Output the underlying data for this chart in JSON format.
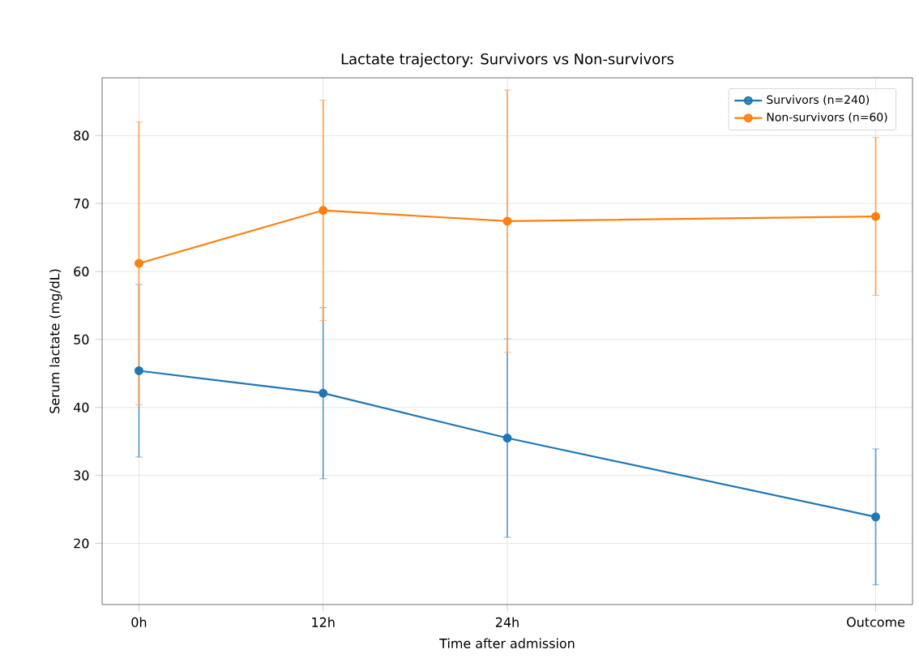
{
  "chart_data": {
    "type": "line",
    "title": "Lactate trajectory: Survivors vs Non-survivors",
    "xlabel": "Time after admission",
    "ylabel": "Serum lactate (mg/dL)",
    "x": [
      0,
      12,
      24,
      48
    ],
    "series": [
      {
        "name": "Survivors (n=240)",
        "color": "#1f77b4",
        "values": [
          45.4,
          42.1,
          35.5,
          23.9
        ],
        "errors": [
          12.7,
          12.6,
          14.6,
          10.0
        ]
      },
      {
        "name": "Non-survivors (n=60)",
        "color": "#ff7f0e",
        "values": [
          61.2,
          69.0,
          67.4,
          68.1
        ],
        "errors": [
          20.8,
          16.2,
          19.3,
          11.6
        ]
      }
    ],
    "xlim": [
      -2.4,
      50.4
    ],
    "ylim": [
      11,
      88.5
    ],
    "xticks": [
      {
        "value": 0,
        "label": "0h"
      },
      {
        "value": 12,
        "label": "12h"
      },
      {
        "value": 24,
        "label": "24h"
      },
      {
        "value": 48,
        "label": "Outcome"
      }
    ],
    "yticks": [
      20,
      30,
      40,
      50,
      60,
      70,
      80
    ],
    "grid": true,
    "legend": "top right",
    "marker": "circle",
    "line_style": "solid"
  }
}
